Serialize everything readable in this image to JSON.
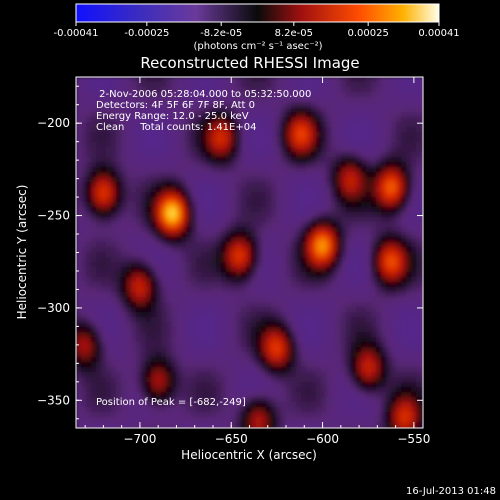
{
  "colorbar": {
    "ticks": [
      "-0.00041",
      "-0.00025",
      "-8.2e-05",
      "8.2e-05",
      "0.00025",
      "0.00041"
    ],
    "tick_values": [
      -0.00041,
      -0.00025,
      -8.2e-05,
      8.2e-05,
      0.00025,
      0.00041
    ],
    "range": [
      -0.00041,
      0.00041
    ]
  },
  "info_lines": {
    "time": " 2-Nov-2006 05:28:04.000 to 05:32:50.000",
    "detectors": "Detectors: 4F 5F 6F 7F 8F, Att 0",
    "energy": "Energy Range: 12.0 - 25.0 keV",
    "clean": "Clean     Total counts: 1.41E+04",
    "peak": "Position of Peak = [-682,-249]"
  },
  "footer_date": "16-Jul-2013 01:48",
  "chart_data": {
    "type": "heatmap",
    "title": "Reconstructed RHESSI Image",
    "colorbar_label": "(photons cm⁻² s⁻¹ asec⁻²)",
    "xlabel": "Heliocentric X (arcsec)",
    "ylabel": "Heliocentric Y (arcsec)",
    "xlim": [
      -735,
      -545
    ],
    "ylim": [
      -365,
      -175
    ],
    "xticks": [
      -700,
      -650,
      -600,
      -550
    ],
    "xtick_labels": [
      "−700",
      "−650",
      "−600",
      "−550"
    ],
    "yticks": [
      -350,
      -300,
      -250,
      -200
    ],
    "ytick_labels": [
      "−350",
      "−300",
      "−250",
      "−200"
    ],
    "peak": [
      -682,
      -249
    ],
    "blobs": [
      {
        "x": -682,
        "y": -249,
        "value": 1.0
      },
      {
        "x": -720,
        "y": -238,
        "value": 0.75
      },
      {
        "x": -700,
        "y": -288,
        "value": 0.6
      },
      {
        "x": -655,
        "y": -208,
        "value": 0.55
      },
      {
        "x": -645,
        "y": -272,
        "value": 0.7
      },
      {
        "x": -612,
        "y": -206,
        "value": 0.6
      },
      {
        "x": -600,
        "y": -266,
        "value": 0.85
      },
      {
        "x": -585,
        "y": -230,
        "value": 0.5
      },
      {
        "x": -562,
        "y": -235,
        "value": 0.8
      },
      {
        "x": -563,
        "y": -275,
        "value": 0.7
      },
      {
        "x": -625,
        "y": -322,
        "value": 0.65
      },
      {
        "x": -575,
        "y": -333,
        "value": 0.6
      },
      {
        "x": -690,
        "y": -340,
        "value": 0.55
      },
      {
        "x": -730,
        "y": -320,
        "value": 0.5
      },
      {
        "x": -555,
        "y": -360,
        "value": 0.6
      },
      {
        "x": -635,
        "y": -360,
        "value": 0.5
      }
    ]
  }
}
